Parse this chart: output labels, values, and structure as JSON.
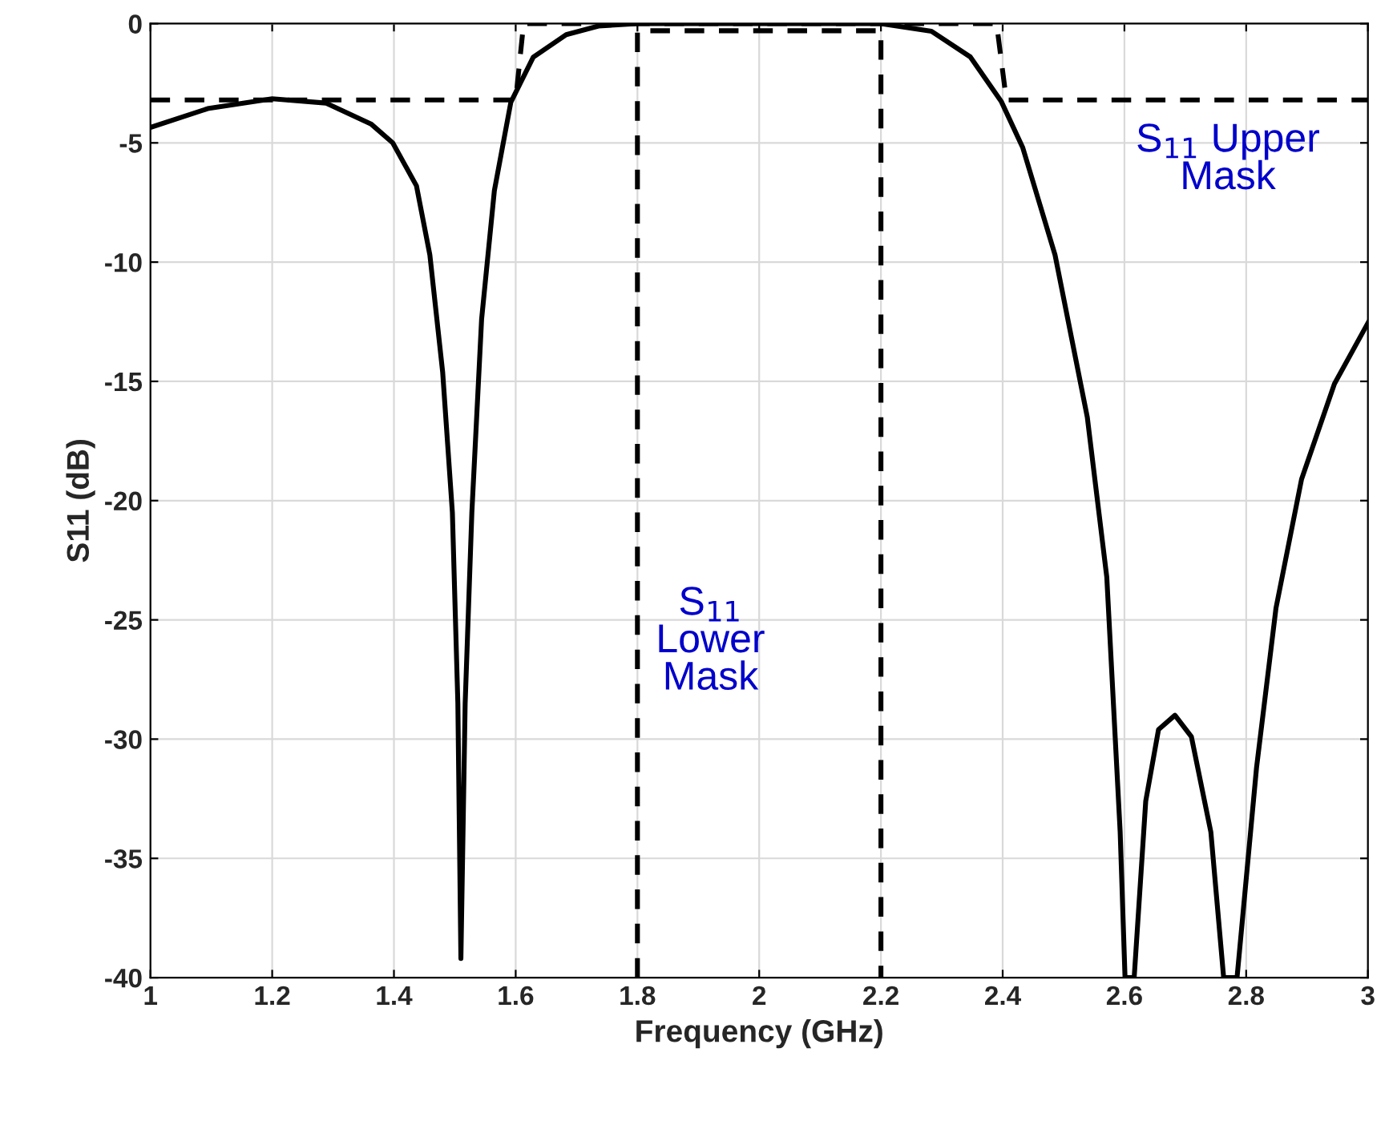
{
  "chart_data": {
    "type": "line",
    "xlabel": "Frequency (GHz)",
    "ylabel": "S11 (dB)",
    "xlim": [
      1,
      3
    ],
    "ylim": [
      -40,
      0
    ],
    "xticks": [
      1,
      1.2,
      1.4,
      1.6,
      1.8,
      2,
      2.2,
      2.4,
      2.6,
      2.8,
      3
    ],
    "yticks": [
      -40,
      -35,
      -30,
      -25,
      -20,
      -15,
      -10,
      -5,
      0
    ],
    "grid": true,
    "legend": false,
    "series": [
      {
        "color": "#000000",
        "line_style": "solid",
        "x": [
          1.0,
          1.096,
          1.2,
          1.288,
          1.363,
          1.398,
          1.437,
          1.459,
          1.48,
          1.496,
          1.505,
          1.51,
          1.517,
          1.528,
          1.544,
          1.565,
          1.592,
          1.629,
          1.683,
          1.736,
          1.8,
          2.0,
          2.2,
          2.283,
          2.347,
          2.398,
          2.433,
          2.486,
          2.539,
          2.571,
          2.593,
          2.601,
          2.616,
          2.635,
          2.656,
          2.683,
          2.71,
          2.742,
          2.763,
          2.785,
          2.817,
          2.849,
          2.891,
          2.945,
          3.0
        ],
        "values": [
          -4.35,
          -3.55,
          -3.15,
          -3.33,
          -4.22,
          -5.0,
          -6.8,
          -9.7,
          -14.6,
          -20.5,
          -28.5,
          -39.2,
          -28.5,
          -20.5,
          -12.4,
          -7.0,
          -3.3,
          -1.4,
          -0.46,
          -0.1,
          0,
          0,
          0,
          -0.32,
          -1.4,
          -3.28,
          -5.2,
          -9.7,
          -16.5,
          -23.2,
          -33.9,
          -40,
          -40,
          -32.6,
          -29.6,
          -29.0,
          -29.9,
          -33.9,
          -40,
          -40,
          -31.2,
          -24.5,
          -19.1,
          -15.1,
          -12.55
        ]
      },
      {
        "color": "#000000",
        "line_style": "dashed",
        "x": [
          1.0,
          1.6,
          1.613,
          2.39,
          2.406,
          3.0
        ],
        "values": [
          -3.2,
          -3.2,
          0,
          0,
          -3.2,
          -3.2
        ]
      },
      {
        "color": "#000000",
        "line_style": "dashed",
        "x": [
          1.8,
          1.8,
          2.2,
          2.2
        ],
        "values": [
          -40,
          -0.3,
          -0.3,
          -40
        ]
      }
    ],
    "annotations": [
      "S$_{11}$ Upper\nMask",
      "S$_{11}$\nLower\nMask"
    ]
  }
}
